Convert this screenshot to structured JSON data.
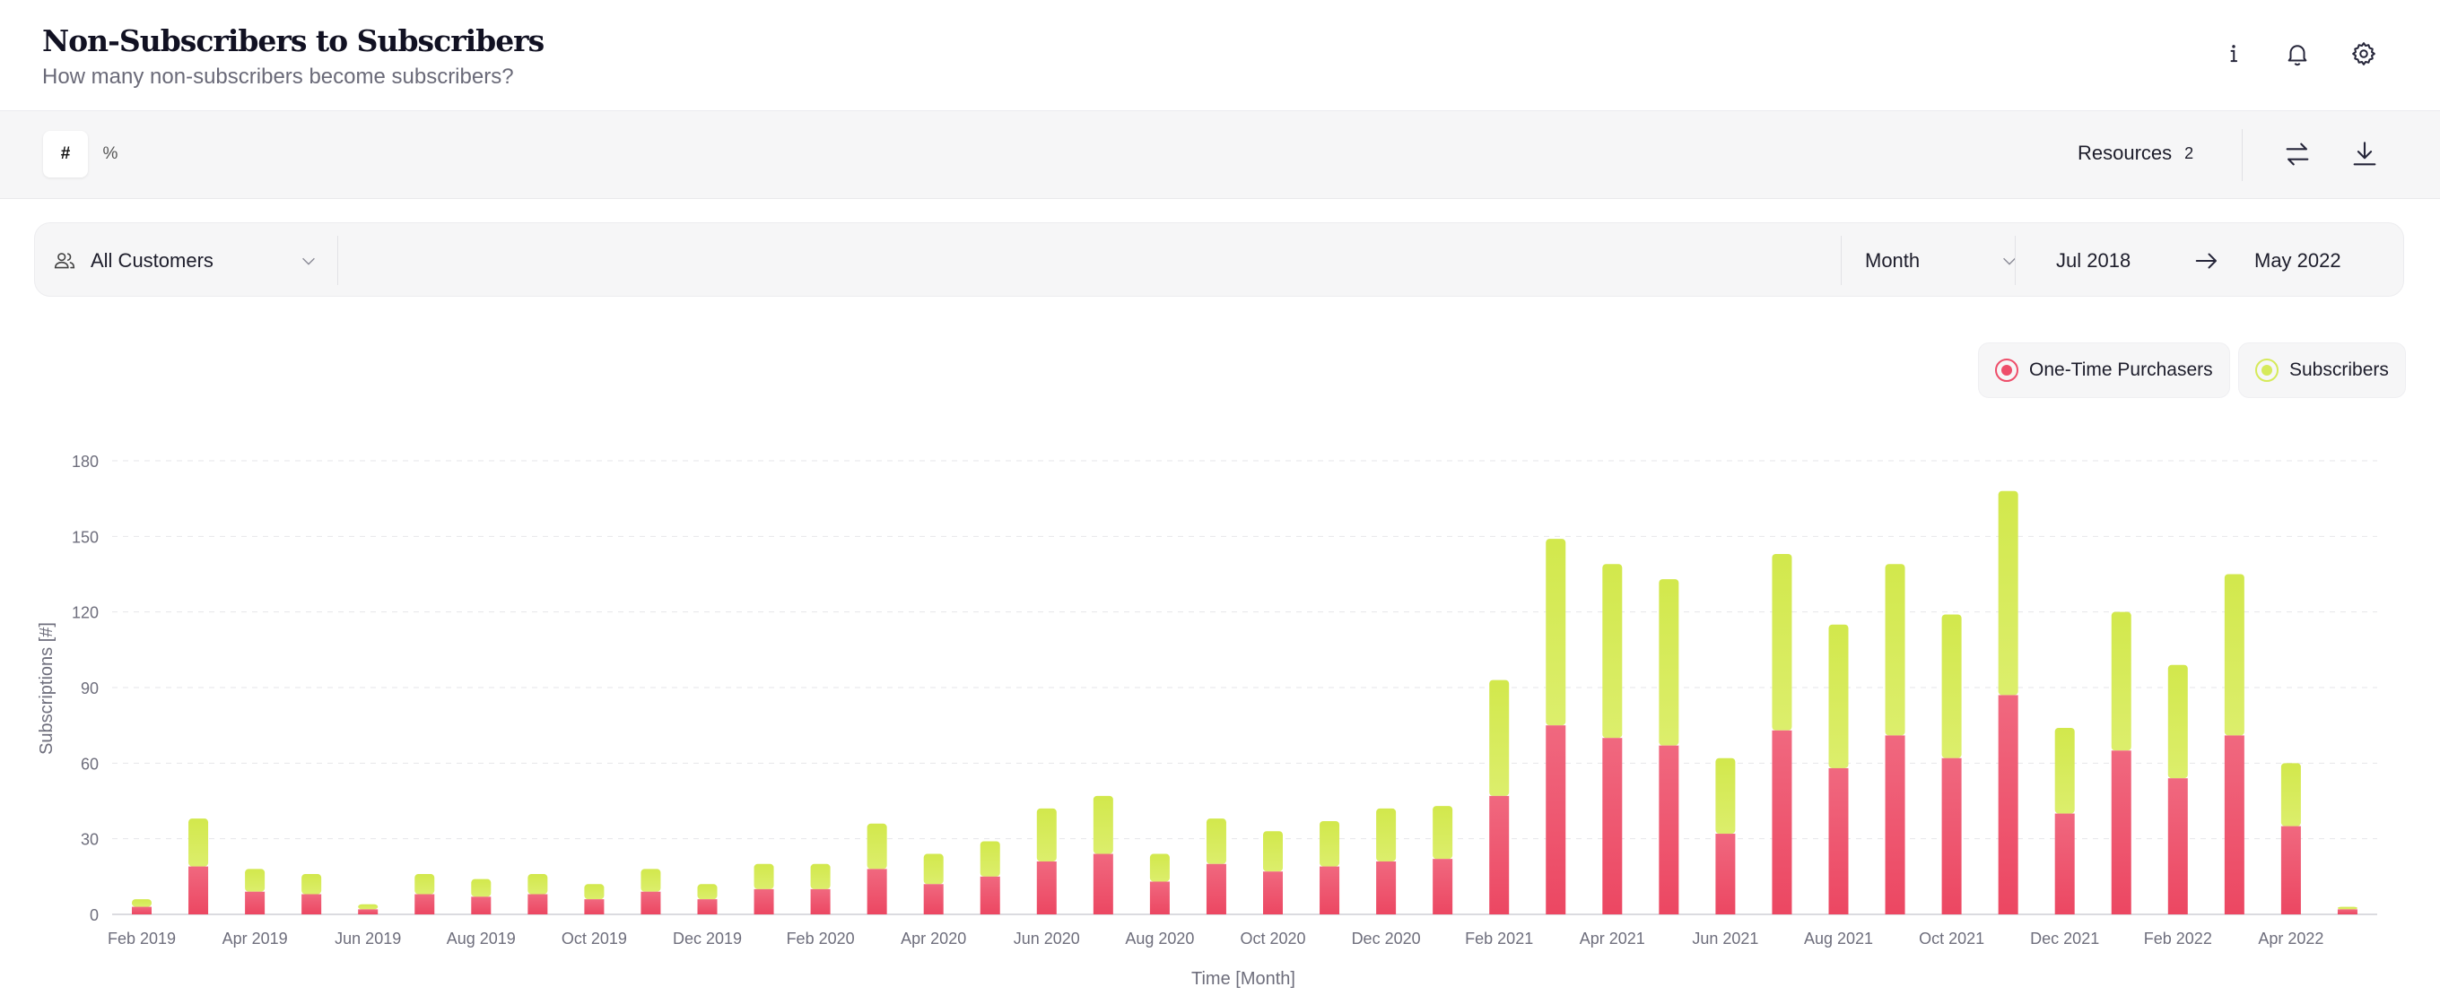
{
  "header": {
    "title": "Non-Subscribers to Subscribers",
    "subtitle": "How many non-subscribers become subscribers?",
    "icons": [
      "info-icon",
      "bell-icon",
      "gear-icon"
    ]
  },
  "toolbar": {
    "toggle": [
      {
        "label": "#",
        "active": true
      },
      {
        "label": "%",
        "active": false
      }
    ],
    "resources_label": "Resources",
    "resources_count": "2",
    "icons": [
      "swap-arrows-icon",
      "download-icon"
    ]
  },
  "filters": {
    "segment": "All Customers",
    "interval": "Month",
    "date_from": "Jul 2018",
    "date_to": "May 2022"
  },
  "legend": [
    {
      "label": "One-Time Purchasers",
      "color": "#ee4e6a"
    },
    {
      "label": "Subscribers",
      "color": "#d6ea5a"
    }
  ],
  "chart_data": {
    "type": "bar",
    "stacked": true,
    "xlabel": "Time [Month]",
    "ylabel": "Subscriptions [#]",
    "ylim": [
      0,
      180
    ],
    "yticks": [
      0,
      30,
      60,
      90,
      120,
      150,
      180
    ],
    "grid": true,
    "legend_position": "top-right",
    "x_tick_labels": [
      "Feb 2019",
      "Apr 2019",
      "Jun 2019",
      "Aug 2019",
      "Oct 2019",
      "Dec 2019",
      "Feb 2020",
      "Apr 2020",
      "Jun 2020",
      "Aug 2020",
      "Oct 2020",
      "Dec 2020",
      "Feb 2021",
      "Apr 2021",
      "Jun 2021",
      "Aug 2021",
      "Oct 2021",
      "Dec 2021",
      "Feb 2022",
      "Apr 2022"
    ],
    "categories": [
      "Feb 2019",
      "Mar 2019",
      "Apr 2019",
      "May 2019",
      "Jun 2019",
      "Jul 2019",
      "Aug 2019",
      "Sep 2019",
      "Oct 2019",
      "Nov 2019",
      "Dec 2019",
      "Jan 2020",
      "Feb 2020",
      "Mar 2020",
      "Apr 2020",
      "May 2020",
      "Jun 2020",
      "Jul 2020",
      "Aug 2020",
      "Sep 2020",
      "Oct 2020",
      "Nov 2020",
      "Dec 2020",
      "Jan 2021",
      "Feb 2021",
      "Mar 2021",
      "Apr 2021",
      "May 2021",
      "Jun 2021",
      "Jul 2021",
      "Aug 2021",
      "Sep 2021",
      "Oct 2021",
      "Nov 2021",
      "Dec 2021",
      "Jan 2022",
      "Feb 2022",
      "Mar 2022",
      "Apr 2022",
      "May 2022"
    ],
    "series": [
      {
        "name": "One-Time Purchasers",
        "color": "#ee4e6a",
        "values": [
          3,
          19,
          9,
          8,
          2,
          8,
          7,
          8,
          6,
          9,
          6,
          10,
          10,
          18,
          12,
          15,
          21,
          24,
          13,
          20,
          17,
          19,
          21,
          22,
          47,
          75,
          70,
          67,
          32,
          73,
          58,
          71,
          62,
          87,
          40,
          65,
          54,
          71,
          35,
          2
        ]
      },
      {
        "name": "Subscribers",
        "color": "#d6ea5a",
        "values": [
          3,
          19,
          9,
          8,
          2,
          8,
          7,
          8,
          6,
          9,
          6,
          10,
          10,
          18,
          12,
          14,
          21,
          23,
          11,
          18,
          16,
          18,
          21,
          21,
          46,
          74,
          69,
          66,
          30,
          70,
          57,
          68,
          57,
          81,
          34,
          55,
          45,
          64,
          25,
          1
        ]
      }
    ]
  }
}
